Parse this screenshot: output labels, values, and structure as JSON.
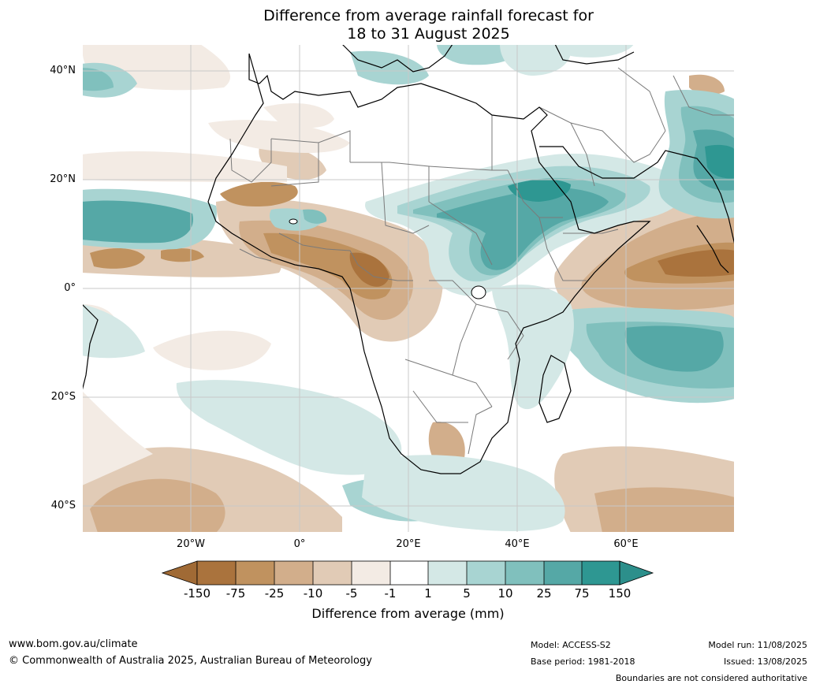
{
  "title": {
    "line1": "Difference from average rainfall forecast for",
    "line2": "18 to 31 August 2025"
  },
  "map": {
    "region": "Africa and surrounding oceans",
    "lat_labels": [
      "40°N",
      "20°N",
      "0°",
      "20°S",
      "40°S"
    ],
    "lon_labels": [
      "20°W",
      "0°",
      "20°E",
      "40°E",
      "60°E"
    ],
    "grid": true,
    "ocean_color": "#ffffff",
    "gridline_color": "#c8c8c8",
    "country_border_color": "#7a7a7a",
    "coastline_color": "#000000"
  },
  "colorbar": {
    "label": "Difference from average (mm)",
    "ticks": [
      "-150",
      "-75",
      "-25",
      "-10",
      "-5",
      "-1",
      "1",
      "5",
      "10",
      "25",
      "75",
      "150"
    ],
    "colors": {
      "below_min": "#a06a35",
      "bins": [
        "#aa733d",
        "#c0925f",
        "#d2ae8b",
        "#e1cbb6",
        "#f3ebe4",
        "#ffffff",
        "#d4e8e6",
        "#a8d4d2",
        "#80c0bd",
        "#55a8a6",
        "#2e9792"
      ],
      "above_max": "#2c8f8b"
    }
  },
  "footer": {
    "url": "www.bom.gov.au/climate",
    "copyright": "© Commonwealth of Australia 2025, Australian Bureau of Meteorology",
    "model": "Model: ACCESS-S2",
    "base_period": "Base period: 1981-2018",
    "model_run": "Model run: 11/08/2025",
    "issued": "Issued: 13/08/2025",
    "disclaimer": "Boundaries are not considered authoritative"
  }
}
